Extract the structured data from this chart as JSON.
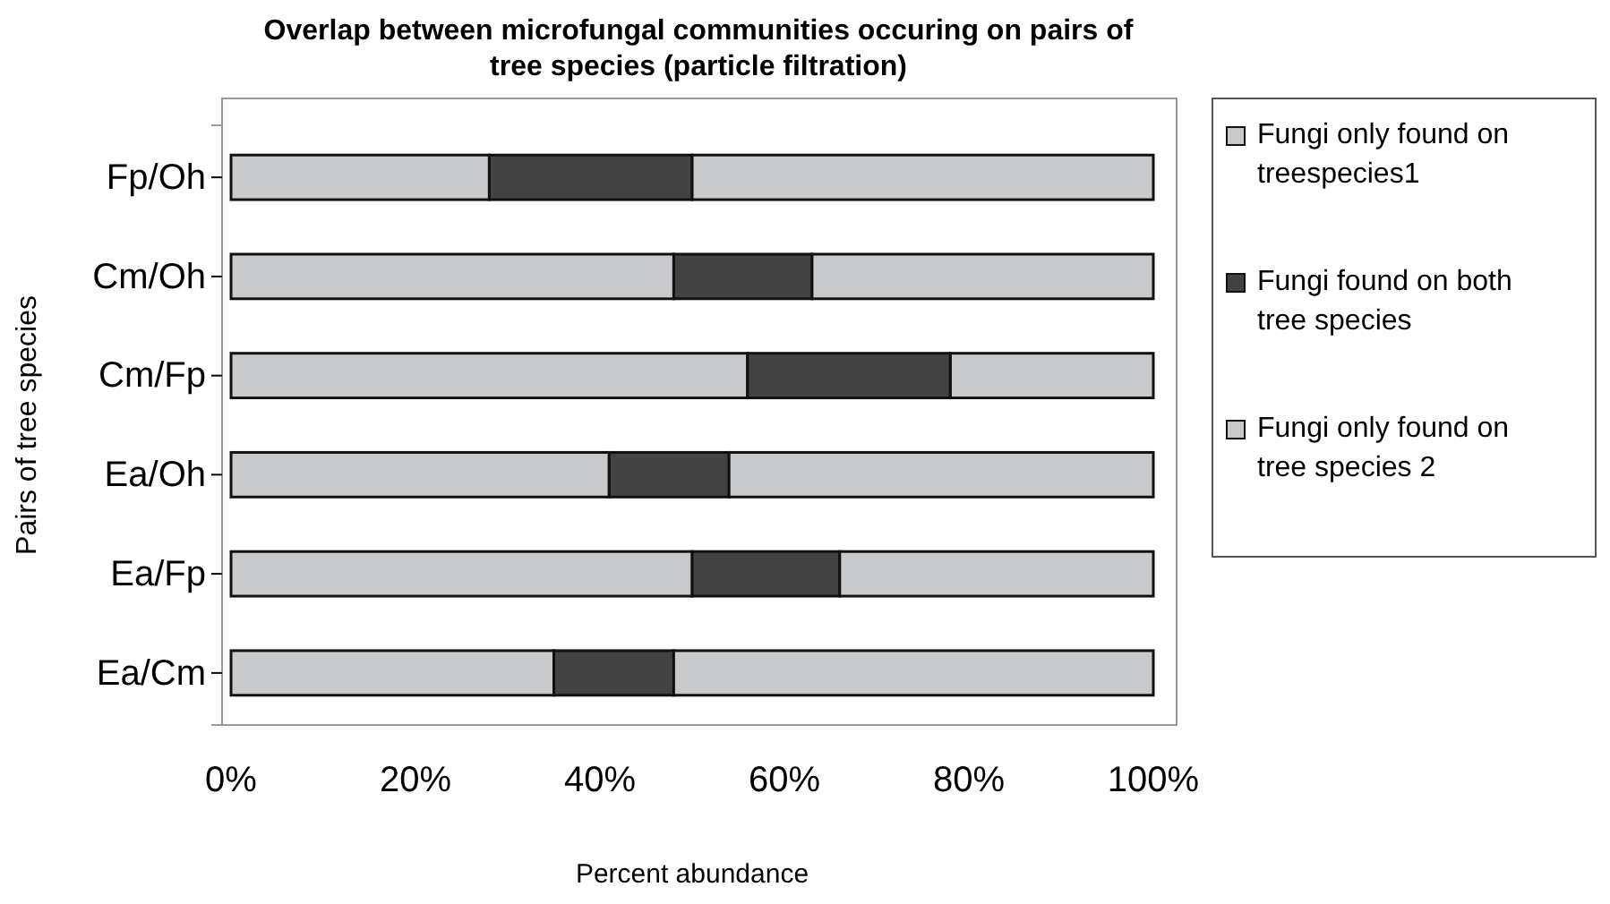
{
  "chart_data": {
    "type": "bar",
    "orientation": "horizontal",
    "stacked": true,
    "title": "Overlap between microfungal communities occuring on pairs of tree species (particle filtration)",
    "xlabel": "Percent abundance",
    "ylabel": "Pairs of tree species",
    "categories": [
      "Fp/Oh",
      "Cm/Oh",
      "Cm/Fp",
      "Ea/Oh",
      "Ea/Fp",
      "Ea/Cm"
    ],
    "series": [
      {
        "name": "Fungi only found on treespecies1",
        "color": "#c8c9cb",
        "values": [
          28,
          48,
          56,
          41,
          50,
          35
        ]
      },
      {
        "name": "Fungi found on both tree species",
        "color": "#434343",
        "values": [
          22,
          15,
          22,
          13,
          16,
          13
        ]
      },
      {
        "name": "Fungi only found on tree species 2",
        "color": "#c8c9cb",
        "values": [
          50,
          37,
          22,
          46,
          34,
          52
        ]
      }
    ],
    "xlim": [
      0,
      100
    ],
    "xticks": [
      {
        "value": 0,
        "label": "0%"
      },
      {
        "value": 20,
        "label": "20%"
      },
      {
        "value": 40,
        "label": "40%"
      },
      {
        "value": 60,
        "label": "60%"
      },
      {
        "value": 80,
        "label": "80%"
      },
      {
        "value": 100,
        "label": "100%"
      }
    ],
    "legend": "right",
    "grid": false
  }
}
